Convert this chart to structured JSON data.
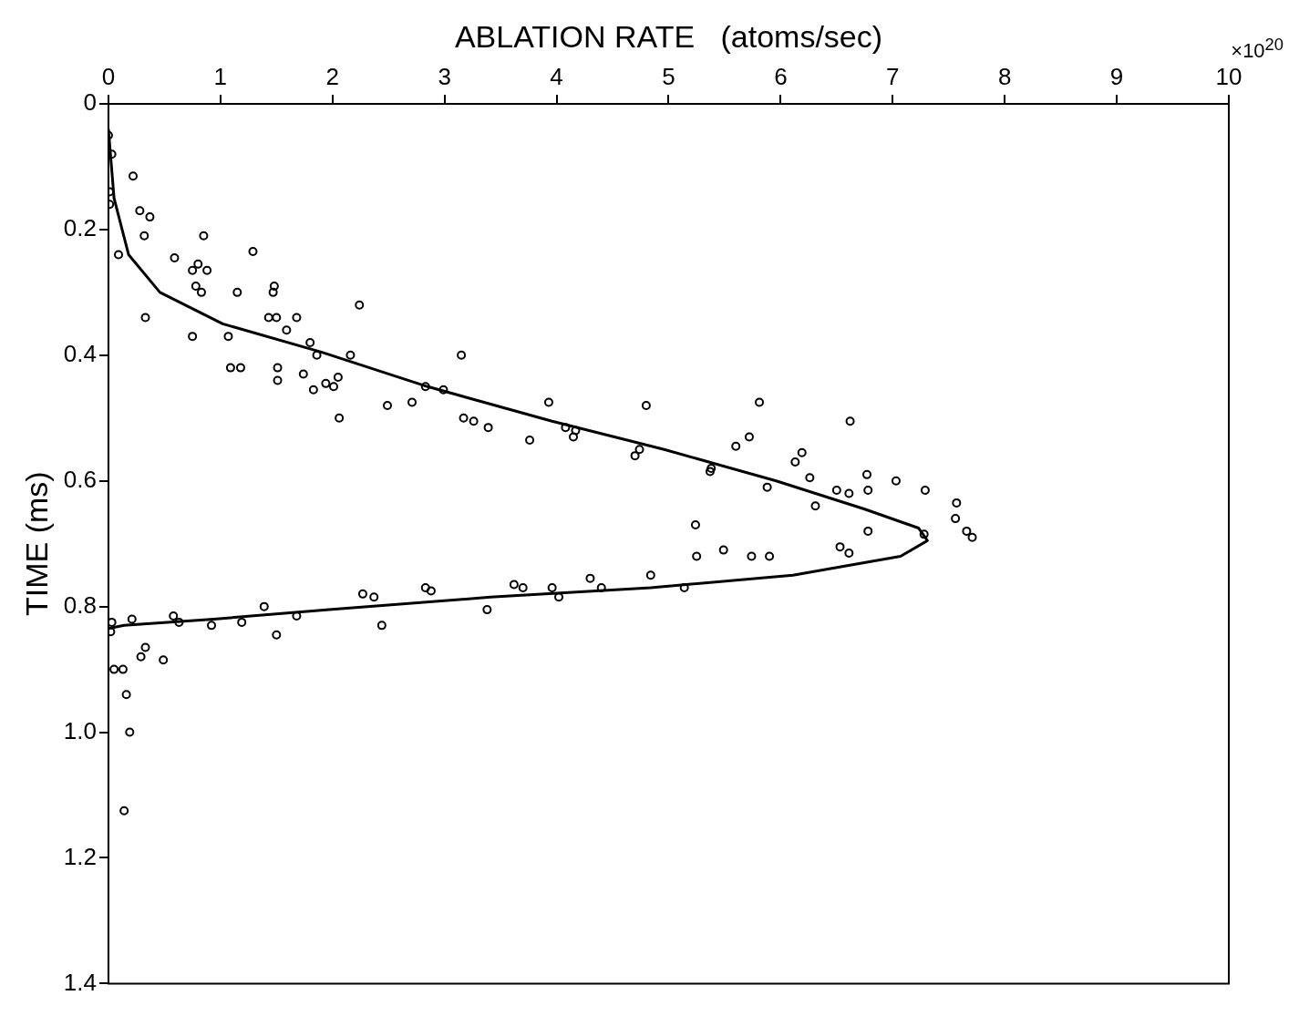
{
  "chart_data": {
    "type": "scatter",
    "xlabel": "ABLATION RATE   (atoms/sec)",
    "ylabel": "TIME (ms)",
    "xlim": [
      0,
      10
    ],
    "xticks": [
      0,
      1,
      2,
      3,
      4,
      5,
      6,
      7,
      8,
      9,
      10
    ],
    "annotations": [
      "×10$^{20}$"
    ],
    "ylim": [
      1.4,
      0
    ],
    "yticks": [
      0,
      0.2,
      0.4,
      0.6,
      0.8,
      {
        "value": 1,
        "label": "1.0"
      },
      1.2,
      1.4
    ],
    "grid": false,
    "legend": false,
    "series": [
      {
        "marker": "circle",
        "color": "#000000",
        "x": [
          0,
          0.03,
          0.22,
          0.01,
          0.01,
          0.28,
          0.37,
          0.32,
          0.09,
          0.59,
          0.85,
          1.29,
          0.8,
          0.75,
          0.88,
          0.78,
          0.83,
          1.15,
          1.48,
          1.47,
          0.33,
          1.43,
          1.5,
          1.68,
          1.59,
          0.75,
          1.07,
          2.24,
          1.8,
          1.86,
          2.16,
          3.15,
          1.09,
          1.18,
          1.51,
          2.05,
          1.51,
          1.74,
          1.94,
          2.01,
          1.83,
          2.83,
          2.99,
          2.71,
          2.49,
          2.06,
          3.93,
          3.17,
          3.26,
          3.39,
          3.76,
          4.08,
          4.17,
          4.15,
          4.8,
          4.74,
          4.7,
          5.81,
          5.72,
          5.6,
          5.38,
          5.37,
          5.88,
          6.62,
          6.19,
          6.13,
          6.26,
          6.5,
          6.61,
          6.31,
          6.77,
          6.78,
          7.03,
          7.29,
          7.57,
          7.56,
          7.66,
          7.71,
          7.28,
          6.78,
          5.24,
          5.25,
          5.49,
          5.74,
          5.9,
          6.53,
          6.61,
          4.84,
          4.3,
          4.4,
          3.96,
          4.02,
          5.14,
          3.62,
          3.7,
          2.83,
          2.88,
          2.27,
          2.37,
          3.38,
          1.39,
          1.68,
          0.58,
          0.63,
          0.03,
          0.21,
          0.02,
          0.92,
          1.19,
          2.44,
          1.5,
          0.33,
          0.29,
          0.49,
          0.05,
          0.13,
          0.16,
          0.19,
          0.14
        ],
        "values": [
          0.05,
          0.08,
          0.115,
          0.14,
          0.16,
          0.17,
          0.18,
          0.21,
          0.24,
          0.245,
          0.21,
          0.235,
          0.255,
          0.265,
          0.265,
          0.29,
          0.3,
          0.3,
          0.29,
          0.3,
          0.34,
          0.34,
          0.34,
          0.34,
          0.36,
          0.37,
          0.37,
          0.32,
          0.38,
          0.4,
          0.4,
          0.4,
          0.42,
          0.42,
          0.42,
          0.435,
          0.44,
          0.43,
          0.445,
          0.45,
          0.455,
          0.45,
          0.455,
          0.475,
          0.48,
          0.5,
          0.475,
          0.5,
          0.505,
          0.515,
          0.535,
          0.515,
          0.52,
          0.53,
          0.48,
          0.55,
          0.56,
          0.475,
          0.53,
          0.545,
          0.58,
          0.585,
          0.61,
          0.505,
          0.555,
          0.57,
          0.595,
          0.615,
          0.62,
          0.64,
          0.59,
          0.615,
          0.6,
          0.615,
          0.635,
          0.66,
          0.68,
          0.69,
          0.685,
          0.68,
          0.67,
          0.72,
          0.71,
          0.72,
          0.72,
          0.705,
          0.715,
          0.75,
          0.755,
          0.77,
          0.77,
          0.785,
          0.77,
          0.765,
          0.77,
          0.77,
          0.775,
          0.78,
          0.785,
          0.805,
          0.8,
          0.815,
          0.815,
          0.825,
          0.825,
          0.82,
          0.84,
          0.83,
          0.825,
          0.83,
          0.845,
          0.865,
          0.88,
          0.885,
          0.9,
          0.9,
          0.94,
          1.0,
          1.125
        ]
      },
      {
        "type": "line",
        "color": "#000000",
        "x": [
          0,
          0.05,
          0.18,
          0.46,
          1.02,
          1.9,
          2.85,
          3.96,
          4.96,
          5.96,
          6.75,
          7.23,
          7.31,
          7.07,
          6.11,
          4.84,
          3.41,
          1.97,
          0.94,
          0.14,
          0
        ],
        "values": [
          0.04,
          0.15,
          0.24,
          0.3,
          0.35,
          0.395,
          0.45,
          0.505,
          0.55,
          0.6,
          0.645,
          0.675,
          0.695,
          0.72,
          0.75,
          0.77,
          0.785,
          0.805,
          0.82,
          0.83,
          0.835
        ]
      }
    ]
  }
}
